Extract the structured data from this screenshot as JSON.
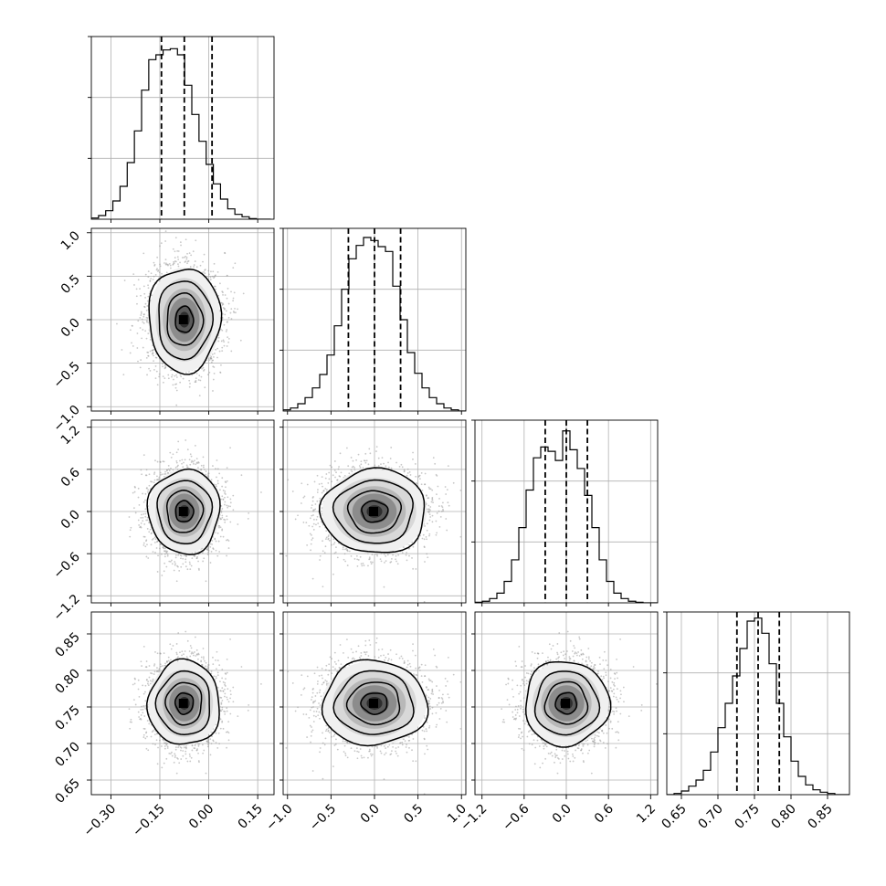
{
  "chart_data": {
    "type": "corner",
    "title": "",
    "grid": true,
    "quantile_lines": [
      0.16,
      0.5,
      0.84
    ],
    "parameters": [
      {
        "name": "",
        "range": [
          -0.36,
          0.2
        ],
        "ticks": [
          -0.3,
          -0.15,
          0.0,
          0.15
        ],
        "tick_labels": [
          "−0.30",
          "−0.15",
          "0.00",
          "0.15"
        ],
        "quantiles": [
          -0.145,
          -0.075,
          0.01
        ],
        "hist_bin_edges": [
          -0.36,
          -0.338,
          -0.316,
          -0.294,
          -0.272,
          -0.25,
          -0.228,
          -0.206,
          -0.184,
          -0.162,
          -0.14,
          -0.118,
          -0.096,
          -0.074,
          -0.052,
          -0.03,
          -0.008,
          0.014,
          0.036,
          0.058,
          0.08,
          0.102,
          0.124,
          0.146,
          0.168,
          0.19
        ],
        "hist_counts": [
          2,
          6,
          14,
          30,
          54,
          93,
          145,
          212,
          262,
          270,
          278,
          280,
          270,
          220,
          172,
          128,
          90,
          58,
          33,
          17,
          8,
          4,
          1,
          0,
          0
        ],
        "hist_ymax": 300
      },
      {
        "name": "",
        "range": [
          -1.05,
          1.05
        ],
        "ticks": [
          -1.0,
          -0.5,
          0.0,
          0.5,
          1.0
        ],
        "tick_labels": [
          "−1.0",
          "−0.5",
          "0.0",
          "0.5",
          "1.0"
        ],
        "quantiles": [
          -0.3,
          0.0,
          0.3
        ],
        "hist_bin_edges": [
          -1.05,
          -0.966,
          -0.882,
          -0.798,
          -0.714,
          -0.63,
          -0.546,
          -0.462,
          -0.378,
          -0.294,
          -0.21,
          -0.126,
          -0.042,
          0.042,
          0.126,
          0.21,
          0.294,
          0.378,
          0.462,
          0.546,
          0.63,
          0.714,
          0.798,
          0.882,
          0.966,
          1.05
        ],
        "hist_counts": [
          2,
          5,
          12,
          22,
          38,
          60,
          92,
          140,
          200,
          250,
          272,
          285,
          280,
          270,
          262,
          205,
          150,
          96,
          62,
          38,
          22,
          12,
          5,
          2,
          0
        ],
        "hist_ymax": 300
      },
      {
        "name": "",
        "range": [
          -1.3,
          1.3
        ],
        "ticks": [
          -1.2,
          -0.6,
          0.0,
          0.6,
          1.2
        ],
        "tick_labels": [
          "−1.2",
          "−0.6",
          "0.0",
          "0.6",
          "1.2"
        ],
        "quantiles": [
          -0.3,
          0.0,
          0.3
        ],
        "hist_bin_edges": [
          -1.3,
          -1.196,
          -1.092,
          -0.988,
          -0.884,
          -0.78,
          -0.676,
          -0.572,
          -0.468,
          -0.364,
          -0.26,
          -0.156,
          -0.052,
          0.052,
          0.156,
          0.26,
          0.364,
          0.468,
          0.572,
          0.676,
          0.78,
          0.884,
          0.988,
          1.092,
          1.196,
          1.3
        ],
        "hist_counts": [
          1,
          3,
          8,
          18,
          40,
          80,
          140,
          210,
          270,
          290,
          282,
          265,
          320,
          285,
          250,
          200,
          140,
          80,
          40,
          18,
          8,
          3,
          1,
          0,
          0
        ],
        "hist_ymax": 340
      },
      {
        "name": "",
        "range": [
          0.63,
          0.88
        ],
        "ticks": [
          0.65,
          0.7,
          0.75,
          0.8,
          0.85
        ],
        "tick_labels": [
          "0.65",
          "0.70",
          "0.75",
          "0.80",
          "0.85"
        ],
        "quantiles": [
          0.726,
          0.755,
          0.784
        ],
        "hist_bin_edges": [
          0.63,
          0.64,
          0.65,
          0.66,
          0.67,
          0.68,
          0.69,
          0.7,
          0.71,
          0.72,
          0.73,
          0.74,
          0.75,
          0.76,
          0.77,
          0.78,
          0.79,
          0.8,
          0.81,
          0.82,
          0.83,
          0.84,
          0.85,
          0.86,
          0.87,
          0.88
        ],
        "hist_counts": [
          0,
          2,
          6,
          14,
          24,
          40,
          70,
          110,
          150,
          195,
          240,
          285,
          290,
          265,
          215,
          150,
          95,
          55,
          30,
          16,
          8,
          4,
          2,
          0,
          0
        ],
        "hist_ymax": 300
      }
    ],
    "panel_axes": {
      "0": {
        "ylabels": false,
        "xlabels": false
      },
      "1": {
        "ylabels": true,
        "xlabels": false
      }
    },
    "correlation_panels": [
      {
        "row": 1,
        "col": 0,
        "center": [
          -0.075,
          0.0
        ],
        "sigma": [
          0.055,
          0.3
        ]
      },
      {
        "row": 2,
        "col": 0,
        "center": [
          -0.075,
          0.0
        ],
        "sigma": [
          0.055,
          0.3
        ]
      },
      {
        "row": 2,
        "col": 1,
        "center": [
          0.0,
          0.0
        ],
        "sigma": [
          0.3,
          0.3
        ]
      },
      {
        "row": 3,
        "col": 0,
        "center": [
          -0.075,
          0.755
        ],
        "sigma": [
          0.055,
          0.029
        ]
      },
      {
        "row": 3,
        "col": 1,
        "center": [
          0.0,
          0.755
        ],
        "sigma": [
          0.3,
          0.029
        ]
      },
      {
        "row": 3,
        "col": 2,
        "center": [
          0.0,
          0.755
        ],
        "sigma": [
          0.3,
          0.029
        ]
      }
    ],
    "contour_levels_sigma": [
      0.5,
      1.0,
      1.5,
      2.0
    ],
    "colors": {
      "line": "#000000",
      "grid": "#b0b0b0",
      "scatter": "#9a9a9a",
      "density": "#000000"
    }
  }
}
